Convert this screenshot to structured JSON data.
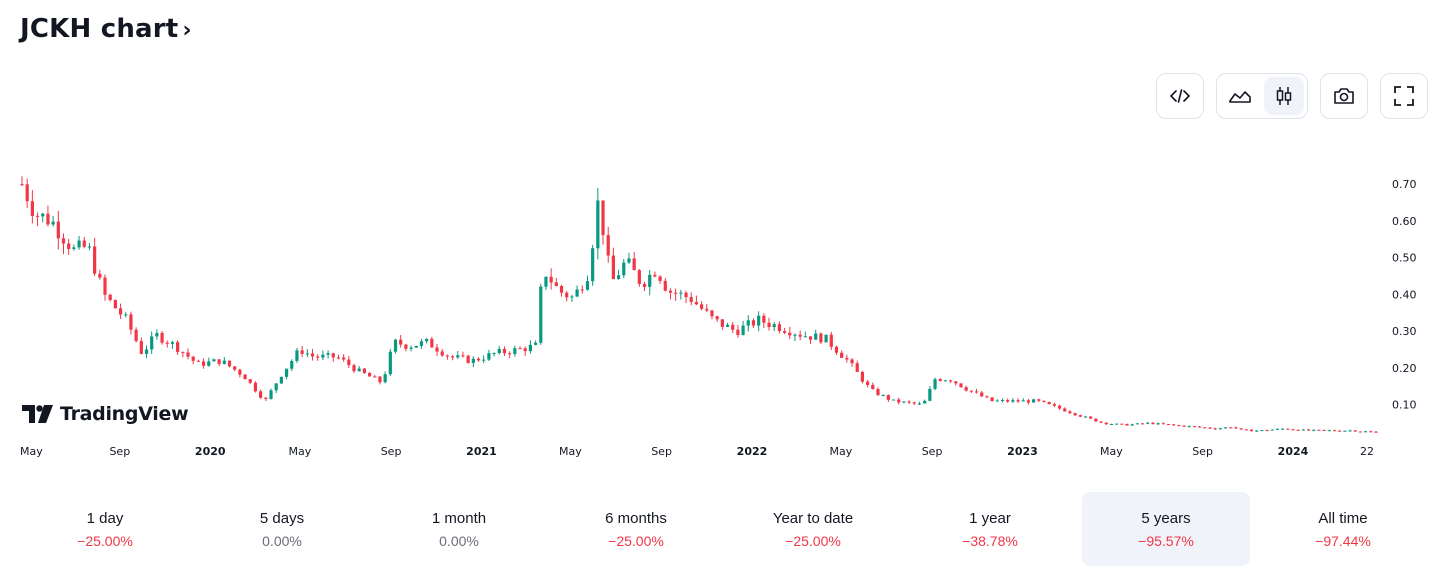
{
  "header": {
    "title": "JCKH chart",
    "chevron": "›"
  },
  "toolbar": {
    "embed_icon": "code-icon",
    "line_icon": "area-chart-icon",
    "candle_icon": "candlestick-icon",
    "camera_icon": "camera-icon",
    "fullscreen_icon": "fullscreen-icon"
  },
  "logo": {
    "text": "TradingView"
  },
  "colors": {
    "up": "#089981",
    "down": "#f23645",
    "active_bg": "#f0f3fa"
  },
  "chart_data": {
    "type": "candlestick",
    "y_ticks": [
      "0.70",
      "0.60",
      "0.50",
      "0.40",
      "0.30",
      "0.20",
      "0.10"
    ],
    "y_tick_values": [
      0.7,
      0.6,
      0.5,
      0.4,
      0.3,
      0.2,
      0.1
    ],
    "ylim": [
      0.015,
      0.82
    ],
    "x_ticks": [
      {
        "label": "May",
        "date": "2019-05",
        "bold": false
      },
      {
        "label": "Sep",
        "date": "2019-09",
        "bold": false
      },
      {
        "label": "2020",
        "date": "2020-01",
        "bold": true
      },
      {
        "label": "May",
        "date": "2020-05",
        "bold": false
      },
      {
        "label": "Sep",
        "date": "2020-09",
        "bold": false
      },
      {
        "label": "2021",
        "date": "2021-01",
        "bold": true
      },
      {
        "label": "May",
        "date": "2021-05",
        "bold": false
      },
      {
        "label": "Sep",
        "date": "2021-09",
        "bold": false
      },
      {
        "label": "2022",
        "date": "2022-01",
        "bold": true
      },
      {
        "label": "May",
        "date": "2022-05",
        "bold": false
      },
      {
        "label": "Sep",
        "date": "2022-09",
        "bold": false
      },
      {
        "label": "2023",
        "date": "2023-01",
        "bold": true
      },
      {
        "label": "May",
        "date": "2023-05",
        "bold": false
      },
      {
        "label": "Sep",
        "date": "2023-09",
        "bold": false
      },
      {
        "label": "2024",
        "date": "2024-01",
        "bold": true
      },
      {
        "label": "22",
        "date": "2024-04-22",
        "bold": false
      }
    ],
    "xlim": [
      "2019-04-22",
      "2024-04-22"
    ],
    "price_path": [
      [
        "2019-04-22",
        0.7
      ],
      [
        "2019-05-10",
        0.62
      ],
      [
        "2019-06-01",
        0.6
      ],
      [
        "2019-07-01",
        0.52
      ],
      [
        "2019-07-20",
        0.53
      ],
      [
        "2019-08-10",
        0.4
      ],
      [
        "2019-09-10",
        0.33
      ],
      [
        "2019-10-01",
        0.24
      ],
      [
        "2019-10-20",
        0.29
      ],
      [
        "2019-11-15",
        0.26
      ],
      [
        "2019-12-15",
        0.21
      ],
      [
        "2020-01-15",
        0.22
      ],
      [
        "2020-02-15",
        0.18
      ],
      [
        "2020-03-15",
        0.11
      ],
      [
        "2020-04-05",
        0.18
      ],
      [
        "2020-05-01",
        0.25
      ],
      [
        "2020-05-20",
        0.23
      ],
      [
        "2020-06-20",
        0.23
      ],
      [
        "2020-07-20",
        0.19
      ],
      [
        "2020-08-20",
        0.16
      ],
      [
        "2020-09-05",
        0.27
      ],
      [
        "2020-09-25",
        0.26
      ],
      [
        "2020-10-20",
        0.27
      ],
      [
        "2020-11-20",
        0.23
      ],
      [
        "2020-12-20",
        0.22
      ],
      [
        "2021-01-20",
        0.24
      ],
      [
        "2021-02-20",
        0.25
      ],
      [
        "2021-03-15",
        0.26
      ],
      [
        "2021-03-25",
        0.47
      ],
      [
        "2021-04-15",
        0.41
      ],
      [
        "2021-05-05",
        0.39
      ],
      [
        "2021-05-25",
        0.46
      ],
      [
        "2021-06-08",
        0.66
      ],
      [
        "2021-06-25",
        0.43
      ],
      [
        "2021-07-15",
        0.49
      ],
      [
        "2021-08-05",
        0.43
      ],
      [
        "2021-08-25",
        0.47
      ],
      [
        "2021-09-10",
        0.41
      ],
      [
        "2021-10-10",
        0.39
      ],
      [
        "2021-11-10",
        0.33
      ],
      [
        "2021-12-10",
        0.3
      ],
      [
        "2022-01-10",
        0.33
      ],
      [
        "2022-02-10",
        0.31
      ],
      [
        "2022-03-10",
        0.29
      ],
      [
        "2022-04-10",
        0.28
      ],
      [
        "2022-05-10",
        0.22
      ],
      [
        "2022-06-10",
        0.14
      ],
      [
        "2022-07-10",
        0.11
      ],
      [
        "2022-08-20",
        0.1
      ],
      [
        "2022-09-05",
        0.17
      ],
      [
        "2022-09-25",
        0.17
      ],
      [
        "2022-10-20",
        0.14
      ],
      [
        "2022-11-20",
        0.11
      ],
      [
        "2022-12-20",
        0.11
      ],
      [
        "2023-01-20",
        0.11
      ],
      [
        "2023-02-20",
        0.09
      ],
      [
        "2023-03-20",
        0.07
      ],
      [
        "2023-04-20",
        0.05
      ],
      [
        "2023-05-20",
        0.045
      ],
      [
        "2023-06-20",
        0.05
      ],
      [
        "2023-07-20",
        0.045
      ],
      [
        "2023-08-20",
        0.04
      ],
      [
        "2023-09-20",
        0.035
      ],
      [
        "2023-10-10",
        0.04
      ],
      [
        "2023-10-25",
        0.03
      ],
      [
        "2023-11-20",
        0.03
      ],
      [
        "2023-12-20",
        0.035
      ],
      [
        "2024-01-20",
        0.03
      ],
      [
        "2024-02-20",
        0.03
      ],
      [
        "2024-03-20",
        0.03
      ],
      [
        "2024-04-22",
        0.025
      ]
    ],
    "series": [
      {
        "name": "JCKH",
        "style": "candles"
      }
    ]
  },
  "periods": [
    {
      "label": "1 day",
      "change": "−25.00%",
      "dir": "neg",
      "active": false
    },
    {
      "label": "5 days",
      "change": "0.00%",
      "dir": "flat",
      "active": false
    },
    {
      "label": "1 month",
      "change": "0.00%",
      "dir": "flat",
      "active": false
    },
    {
      "label": "6 months",
      "change": "−25.00%",
      "dir": "neg",
      "active": false
    },
    {
      "label": "Year to date",
      "change": "−25.00%",
      "dir": "neg",
      "active": false
    },
    {
      "label": "1 year",
      "change": "−38.78%",
      "dir": "neg",
      "active": false
    },
    {
      "label": "5 years",
      "change": "−95.57%",
      "dir": "neg",
      "active": true
    },
    {
      "label": "All time",
      "change": "−97.44%",
      "dir": "neg",
      "active": false
    }
  ]
}
